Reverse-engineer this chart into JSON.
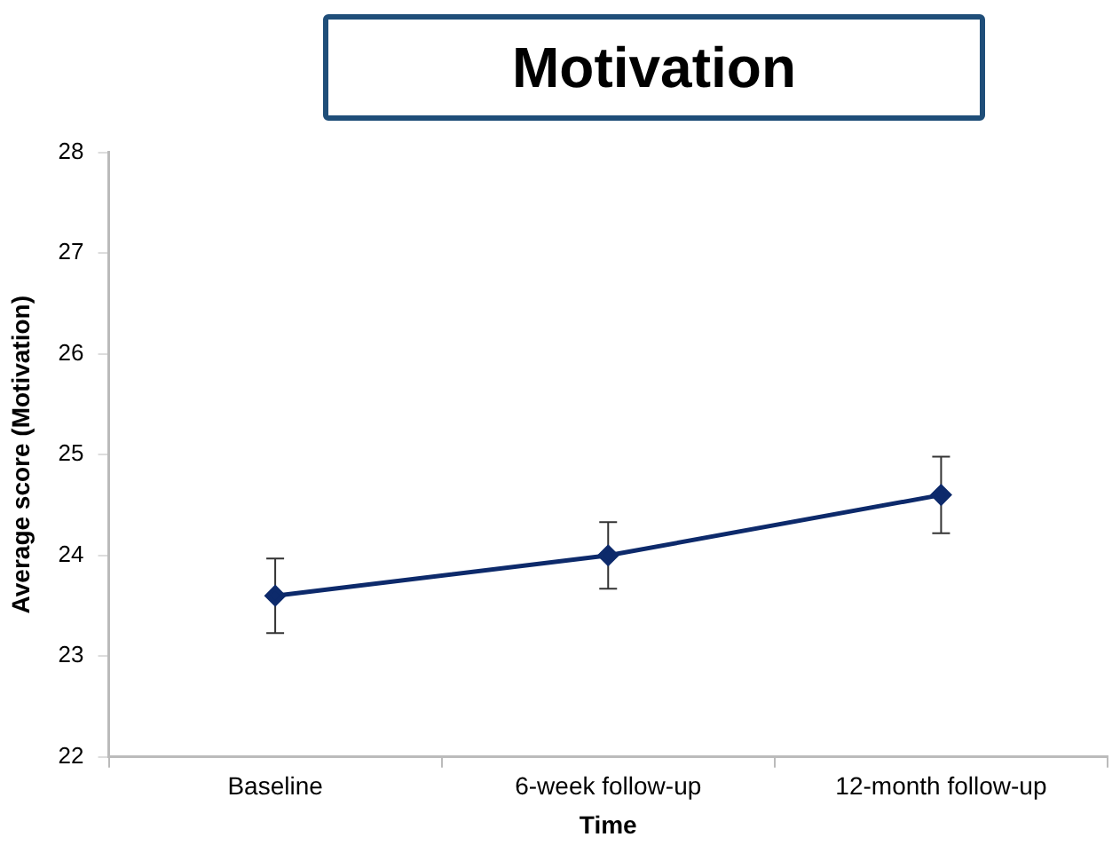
{
  "chart_data": {
    "type": "line",
    "title": "Motivation",
    "xlabel": "Time",
    "ylabel": "Average score (Motivation)",
    "categories": [
      "Baseline",
      "6-week follow-up",
      "12-month follow-up"
    ],
    "series": [
      {
        "color": "#0d2a6b",
        "values": [
          23.6,
          24.0,
          24.6
        ],
        "errors": [
          0.37,
          0.33,
          0.38
        ]
      }
    ],
    "ylim": [
      22,
      28
    ],
    "yticks": [
      22,
      23,
      24,
      25,
      26,
      27,
      28
    ],
    "grid": false,
    "legend": false,
    "marker": "diamond",
    "line_style": "solid"
  }
}
